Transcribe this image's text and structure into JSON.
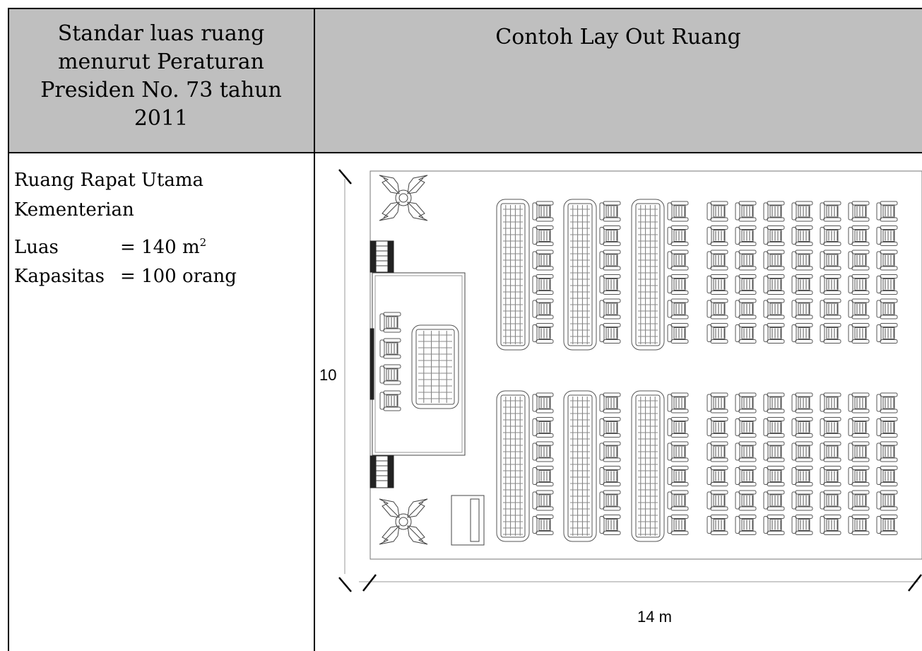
{
  "table": {
    "header_left": "Standar luas ruang menurut Peraturan Presiden No. 73 tahun 2011",
    "header_right": "Contoh Lay Out Ruang"
  },
  "room": {
    "name_line1": "Ruang Rapat Utama",
    "name_line2": "Kementerian",
    "area_label": "Luas",
    "area_value": "= 140 m",
    "area_sup": "2",
    "capacity_label": "Kapasitas",
    "capacity_value": "= 100 orang"
  },
  "plan": {
    "height_dim": "10",
    "width_dim": "14 m",
    "upper_seating": {
      "table_columns": 3,
      "chair_columns": 10,
      "rows": 6
    },
    "lower_seating": {
      "table_columns": 3,
      "chair_columns": 10,
      "rows": 6
    },
    "stage_chairs": 4,
    "plants": 2
  }
}
